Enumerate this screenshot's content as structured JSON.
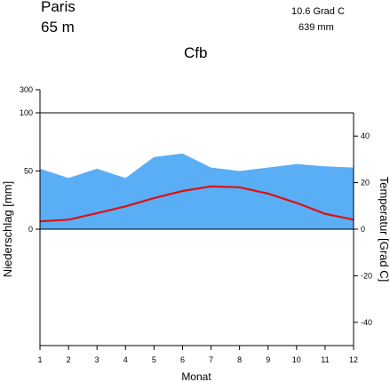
{
  "header": {
    "station": "Paris",
    "elevation": "65 m",
    "mean_temperature": "10.6 Grad C",
    "annual_precipitation": "639 mm",
    "climate_class": "Cfb"
  },
  "chart_data": {
    "type": "area",
    "xlabel": "Monat",
    "ylabel_left": "Niederschlag [mm]",
    "ylabel_right": "Temperatur [Grad C]",
    "x": [
      1,
      2,
      3,
      4,
      5,
      6,
      7,
      8,
      9,
      10,
      11,
      12
    ],
    "x_ticks": [
      "1",
      "2",
      "3",
      "4",
      "5",
      "6",
      "7",
      "8",
      "9",
      "10",
      "11",
      "12"
    ],
    "left_ticks": [
      "300",
      "100",
      "50",
      "0"
    ],
    "right_ticks": [
      "40",
      "20",
      "0",
      "-20",
      "-40"
    ],
    "precip_axis_range": [
      0,
      300
    ],
    "temp_axis_range": [
      -50,
      50
    ],
    "series": [
      {
        "type": "area",
        "color": "#5aaef5",
        "values": [
          52,
          44,
          52,
          44,
          62,
          65,
          53,
          50,
          53,
          56,
          54,
          53
        ]
      },
      {
        "type": "line",
        "color": "#dd1111",
        "values": [
          3.4,
          4.1,
          6.9,
          9.8,
          13.4,
          16.4,
          18.4,
          18.0,
          15.3,
          11.3,
          6.6,
          4.1
        ]
      }
    ],
    "grid": false
  }
}
